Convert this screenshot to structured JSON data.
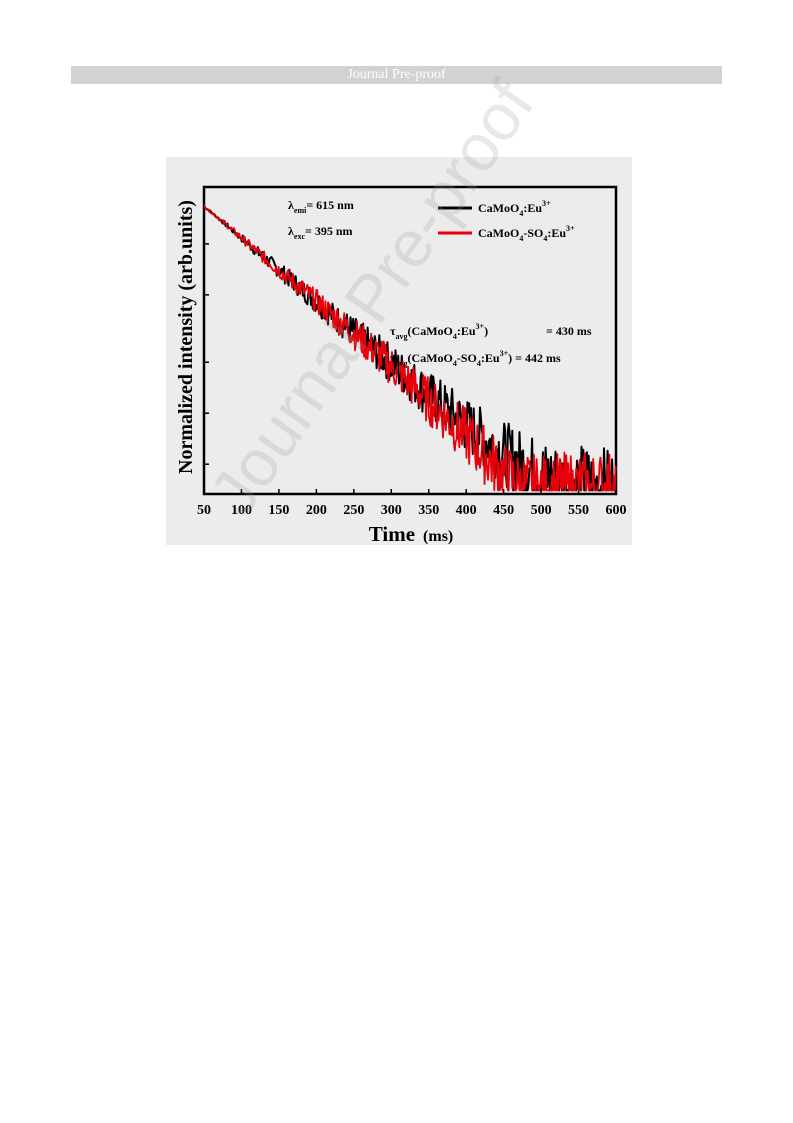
{
  "header": {
    "banner_text": "Journal Pre-proof"
  },
  "watermark": {
    "text": "Journal Pre-proof"
  },
  "chart_data": {
    "type": "line",
    "xlabel": "Time",
    "xlabel_unit": "(ms)",
    "ylabel": "Normalized intensity (arb.units)",
    "xlim": [
      50,
      600
    ],
    "xticks": [
      50,
      100,
      150,
      200,
      250,
      300,
      350,
      400,
      450,
      500,
      550,
      600
    ],
    "ylog": true,
    "grid": false,
    "legend_placement": "top-right",
    "annotations": {
      "emission": {
        "symbol": "λ",
        "sub": "emi",
        "value": "= 615 nm"
      },
      "excitation": {
        "symbol": "λ",
        "sub": "exc",
        "value": "= 395 nm"
      },
      "tau1": {
        "symbol": "τ",
        "sub": "avg",
        "sample": "(CaMoO4:Eu3+)",
        "value": "= 430 ms"
      },
      "tau2": {
        "symbol": "τ",
        "sub": "avg",
        "sample": "(CaMoO4-SO4:Eu3+)",
        "value": "= 442 ms"
      }
    },
    "series": [
      {
        "name": "CaMoO4:Eu3+",
        "color": "#000000",
        "x": [
          50,
          75,
          100,
          125,
          150,
          175,
          200,
          225,
          250,
          275,
          300,
          325,
          350,
          375,
          400,
          425,
          450,
          475,
          500,
          525,
          550,
          575,
          600
        ],
        "y": [
          1.0,
          0.81,
          0.65,
          0.52,
          0.42,
          0.34,
          0.275,
          0.22,
          0.18,
          0.145,
          0.118,
          0.095,
          0.077,
          0.063,
          0.051,
          0.042,
          0.035,
          0.03,
          0.026,
          0.024,
          0.023,
          0.022,
          0.022
        ]
      },
      {
        "name": "CaMoO4-SO4:Eu3+",
        "color": "#e8000b",
        "x": [
          50,
          75,
          100,
          125,
          150,
          175,
          200,
          225,
          250,
          275,
          300,
          325,
          350,
          375,
          400,
          425,
          450,
          475,
          500,
          525,
          550,
          575,
          600
        ],
        "y": [
          1.0,
          0.81,
          0.65,
          0.52,
          0.42,
          0.34,
          0.275,
          0.22,
          0.178,
          0.142,
          0.114,
          0.09,
          0.071,
          0.056,
          0.044,
          0.034,
          0.026,
          0.022,
          0.021,
          0.021,
          0.021,
          0.021,
          0.021
        ]
      }
    ]
  }
}
